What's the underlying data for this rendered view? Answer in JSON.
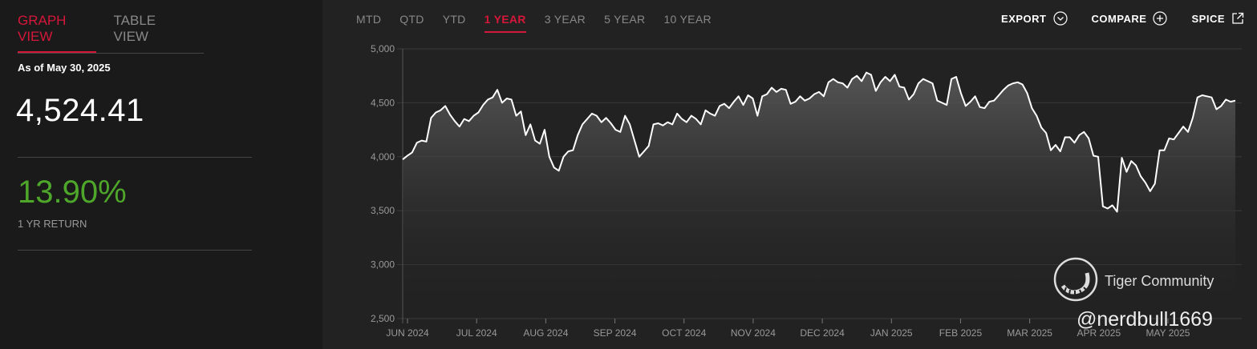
{
  "left": {
    "tabs": [
      {
        "label": "GRAPH VIEW",
        "active": true
      },
      {
        "label": "TABLE VIEW",
        "active": false
      }
    ],
    "as_of": "As of May 30, 2025",
    "price": "4,524.41",
    "return_value": "13.90%",
    "return_label": "1 YR RETURN",
    "return_color": "#4ea72a",
    "accent": "#d5173a"
  },
  "toolbar": {
    "periods": [
      {
        "label": "MTD",
        "active": false
      },
      {
        "label": "QTD",
        "active": false
      },
      {
        "label": "YTD",
        "active": false
      },
      {
        "label": "1 YEAR",
        "active": true
      },
      {
        "label": "3 YEAR",
        "active": false
      },
      {
        "label": "5 YEAR",
        "active": false
      },
      {
        "label": "10 YEAR",
        "active": false
      }
    ],
    "actions": [
      {
        "label": "EXPORT",
        "icon": "chevron-down-circle-icon"
      },
      {
        "label": "COMPARE",
        "icon": "plus-circle-icon"
      },
      {
        "label": "SPICE",
        "icon": "external-link-icon"
      }
    ]
  },
  "chart_data": {
    "type": "area",
    "ylim": [
      2500,
      5000
    ],
    "y_ticks": [
      "5,000",
      "4,500",
      "4,000",
      "3,500",
      "3,000",
      "2,500"
    ],
    "y_tick_values": [
      5000,
      4500,
      4000,
      3500,
      3000,
      2500
    ],
    "x_ticks": [
      "JUN 2024",
      "JUL 2024",
      "AUG 2024",
      "SEP 2024",
      "OCT 2024",
      "NOV 2024",
      "DEC 2024",
      "JAN 2025",
      "FEB 2025",
      "MAR 2025",
      "APR 2025",
      "MAY 2025"
    ],
    "line_color": "#ffffff",
    "grid": true,
    "series": [
      {
        "values": [
          3975,
          4010,
          4040,
          4130,
          4150,
          4140,
          4360,
          4410,
          4430,
          4470,
          4390,
          4330,
          4280,
          4350,
          4330,
          4380,
          4410,
          4480,
          4530,
          4550,
          4620,
          4500,
          4540,
          4530,
          4380,
          4420,
          4200,
          4300,
          4150,
          4120,
          4250,
          4000,
          3900,
          3870,
          4000,
          4050,
          4060,
          4200,
          4300,
          4350,
          4400,
          4380,
          4320,
          4360,
          4310,
          4250,
          4230,
          4380,
          4300,
          4150,
          4000,
          4050,
          4100,
          4300,
          4310,
          4290,
          4320,
          4300,
          4400,
          4350,
          4320,
          4380,
          4350,
          4300,
          4430,
          4400,
          4380,
          4470,
          4490,
          4450,
          4510,
          4560,
          4480,
          4570,
          4540,
          4380,
          4560,
          4580,
          4640,
          4600,
          4630,
          4620,
          4490,
          4510,
          4560,
          4520,
          4540,
          4580,
          4600,
          4560,
          4690,
          4720,
          4690,
          4680,
          4640,
          4720,
          4750,
          4700,
          4780,
          4760,
          4610,
          4690,
          4740,
          4700,
          4760,
          4650,
          4640,
          4530,
          4580,
          4680,
          4720,
          4700,
          4680,
          4520,
          4500,
          4480,
          4720,
          4740,
          4590,
          4470,
          4510,
          4560,
          4460,
          4450,
          4510,
          4520,
          4570,
          4620,
          4660,
          4680,
          4690,
          4670,
          4590,
          4450,
          4380,
          4270,
          4220,
          4060,
          4110,
          4050,
          4180,
          4180,
          4130,
          4200,
          4230,
          4170,
          4010,
          4000,
          3540,
          3520,
          3550,
          3490,
          3990,
          3860,
          3960,
          3920,
          3820,
          3760,
          3680,
          3750,
          4060,
          4060,
          4170,
          4160,
          4220,
          4280,
          4230,
          4360,
          4550,
          4570,
          4560,
          4550,
          4440,
          4470,
          4530,
          4510,
          4520
        ]
      }
    ]
  },
  "watermark": {
    "brand": "Tiger Community",
    "handle": "@nerdbull1669"
  }
}
